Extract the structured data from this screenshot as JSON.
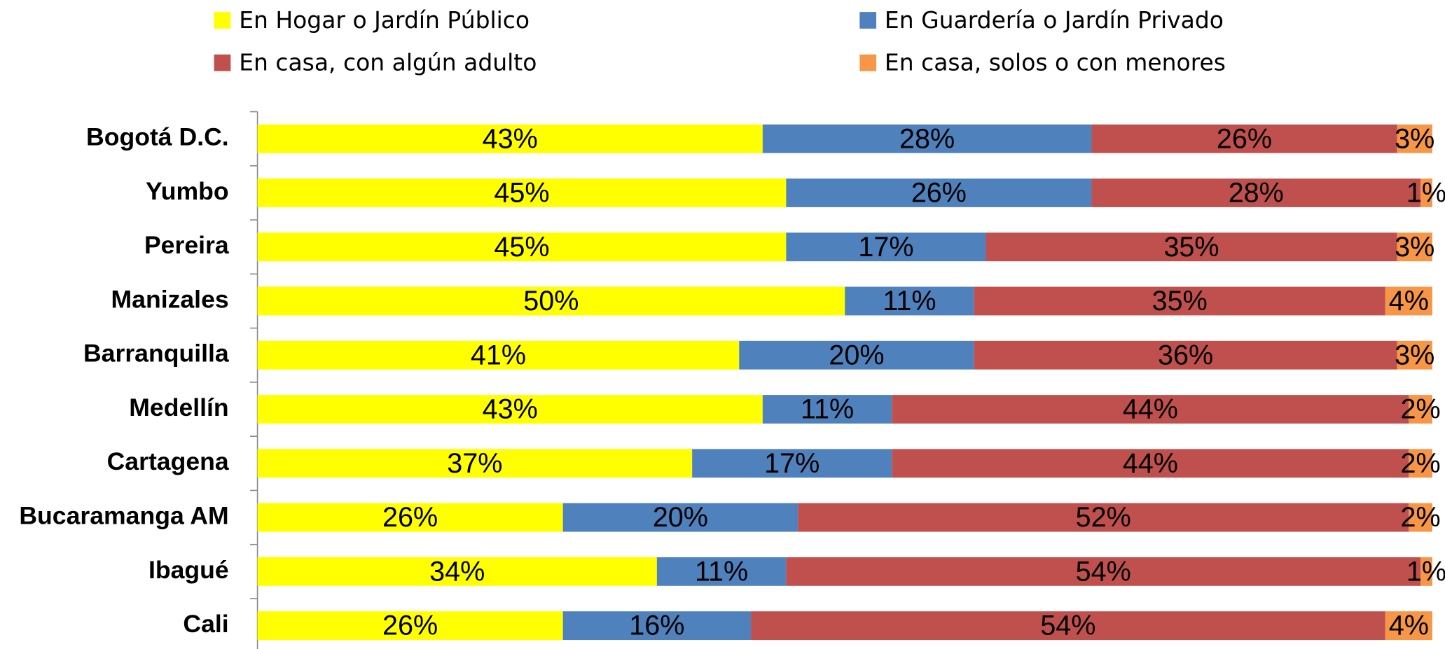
{
  "chart_data": {
    "type": "stacked-barh",
    "categories": [
      "Bogotá D.C.",
      "Yumbo",
      "Pereira",
      "Manizales",
      "Barranquilla",
      "Medellín",
      "Cartagena",
      "Bucaramanga AM",
      "Ibagué",
      "Cali"
    ],
    "xlim": [
      0,
      100
    ],
    "legend": "top",
    "series": [
      {
        "name": "En Hogar o Jardín Público",
        "color": "#ffff00",
        "values": [
          43,
          45,
          45,
          50,
          41,
          43,
          37,
          26,
          34,
          26
        ],
        "value_labels": [
          "43%",
          "45%",
          "45%",
          "50%",
          "41%",
          "43%",
          "37%",
          "26%",
          "34%",
          "26%"
        ]
      },
      {
        "name": "En Guardería o Jardín Privado",
        "color": "#4f81bd",
        "values": [
          28,
          26,
          17,
          11,
          20,
          11,
          17,
          20,
          11,
          16
        ],
        "value_labels": [
          "28%",
          "26%",
          "17%",
          "11%",
          "20%",
          "11%",
          "17%",
          "20%",
          "11%",
          "16%"
        ]
      },
      {
        "name": "En casa, con algún adulto",
        "color": "#c0504d",
        "values": [
          26,
          28,
          35,
          35,
          36,
          44,
          44,
          52,
          54,
          54
        ],
        "value_labels": [
          "26%",
          "28%",
          "35%",
          "35%",
          "36%",
          "44%",
          "44%",
          "52%",
          "54%",
          "54%"
        ]
      },
      {
        "name": "En casa, solos o con menores",
        "color": "#f79646",
        "values": [
          3,
          1,
          3,
          4,
          3,
          2,
          2,
          2,
          1,
          4
        ],
        "value_labels": [
          "3%",
          "1%",
          "3%",
          "4%",
          "3%",
          "2%",
          "2%",
          "2%",
          "1%",
          "4%"
        ]
      }
    ]
  }
}
